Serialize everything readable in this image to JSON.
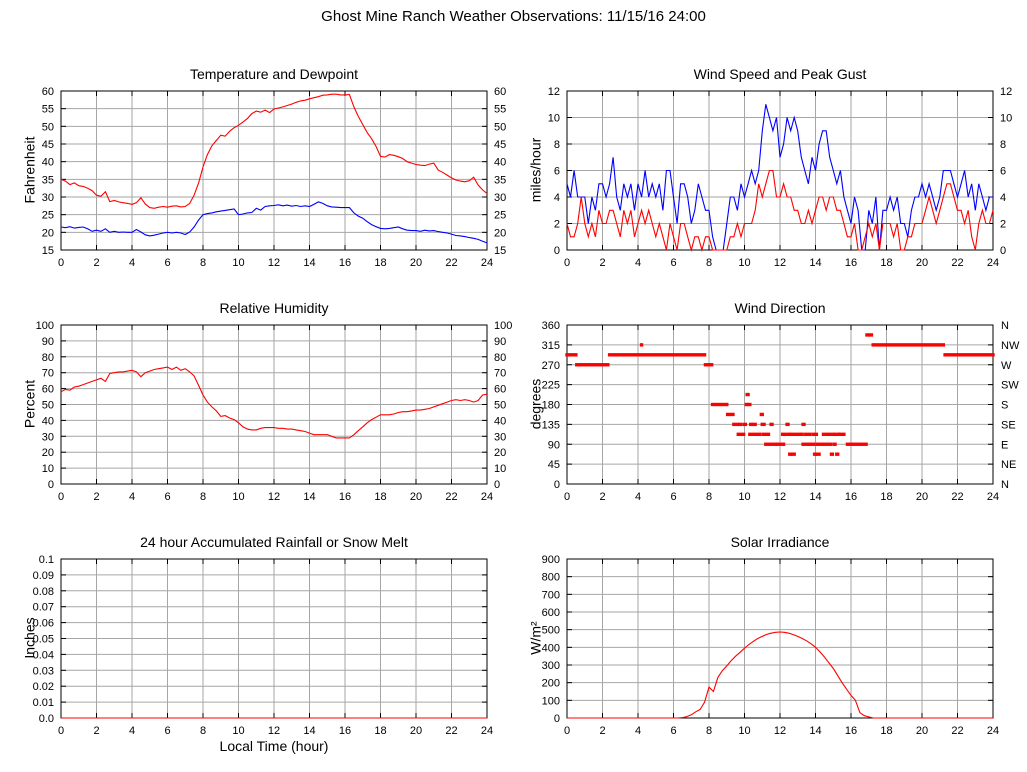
{
  "title": "Ghost Mine Ranch Weather Observations: 11/15/16 24:00",
  "colors": {
    "red": "#ff0000",
    "blue": "#0000ff",
    "grid": "#a6a6a6",
    "border": "#000000"
  },
  "chart_data": [
    {
      "type": "line",
      "title": "Temperature and Dewpoint",
      "ylabel": "Fahrenheit",
      "xlim": [
        0,
        24
      ],
      "ylim": [
        15,
        60
      ],
      "x_ticks": [
        0,
        2,
        4,
        6,
        8,
        10,
        12,
        14,
        16,
        18,
        20,
        22,
        24
      ],
      "y_ticks": [
        15,
        20,
        25,
        30,
        35,
        40,
        45,
        50,
        55,
        60
      ],
      "mirror_y_labels": true,
      "grid": true,
      "series": [
        {
          "name": "temperature",
          "color": "#ff0000",
          "x0": 0,
          "dx": 0.25,
          "values": [
            35,
            34.5,
            33.5,
            34,
            33.2,
            33,
            32.5,
            31.8,
            30.5,
            30.2,
            31.5,
            28.7,
            29,
            28.6,
            28.4,
            28.2,
            27.9,
            28.4,
            29.8,
            28,
            27,
            26.8,
            27.1,
            27.3,
            27.1,
            27.4,
            27.5,
            27.2,
            27.3,
            28.2,
            30.5,
            34,
            38.5,
            42,
            44.5,
            46,
            47.5,
            47.2,
            48.6,
            49.6,
            50.3,
            51.2,
            52.2,
            53.6,
            54.3,
            54,
            54.6,
            53.9,
            54.9,
            55.2,
            55.5,
            55.9,
            56.3,
            56.8,
            57.2,
            57.4,
            57.8,
            58.1,
            58.4,
            58.8,
            58.9,
            59.1,
            59.1,
            58.9,
            58.9,
            59,
            55.5,
            52.8,
            50.5,
            48.2,
            46.5,
            44.3,
            41.5,
            41.3,
            42,
            41.8,
            41.4,
            40.9,
            40,
            39.6,
            39.2,
            39,
            38.9,
            39.3,
            39.6,
            37.6,
            37,
            36.2,
            35.4,
            34.8,
            34.5,
            34.3,
            34.6,
            35.6,
            33.4,
            32,
            31
          ]
        },
        {
          "name": "dewpoint",
          "color": "#0000ff",
          "x0": 0,
          "dx": 0.25,
          "values": [
            21.5,
            21.3,
            21.6,
            21.2,
            21.4,
            21.5,
            21,
            20.3,
            20.6,
            20.3,
            21,
            20,
            20.3,
            20,
            20.1,
            20,
            20,
            20.8,
            20.1,
            19.3,
            19,
            19.2,
            19.5,
            19.8,
            20,
            19.8,
            20,
            19.8,
            19.4,
            20.1,
            21.5,
            23.5,
            25,
            25.3,
            25.5,
            25.8,
            26,
            26.2,
            26.4,
            26.6,
            25,
            25.2,
            25.5,
            25.6,
            26.8,
            26.3,
            27.3,
            27.5,
            27.6,
            27.8,
            27.5,
            27.7,
            27.4,
            27.6,
            27.3,
            27.5,
            27.3,
            27.9,
            28.6,
            28.2,
            27.5,
            27.2,
            27.1,
            27,
            27,
            27,
            25.5,
            24.6,
            24,
            23,
            22.2,
            21.6,
            21.1,
            21,
            21.1,
            21.3,
            21.5,
            21,
            20.6,
            20.5,
            20.5,
            20.3,
            20.6,
            20.4,
            20.5,
            20.2,
            20,
            19.8,
            19.5,
            19.1,
            19,
            18.8,
            18.5,
            18.3,
            18,
            17.5,
            17
          ]
        }
      ]
    },
    {
      "type": "line",
      "title": "Wind Speed and Peak Gust",
      "ylabel": "miles/hour",
      "xlim": [
        0,
        24
      ],
      "ylim": [
        0,
        12
      ],
      "x_ticks": [
        0,
        2,
        4,
        6,
        8,
        10,
        12,
        14,
        16,
        18,
        20,
        22,
        24
      ],
      "y_ticks": [
        0,
        2,
        4,
        6,
        8,
        10,
        12
      ],
      "mirror_y_labels": true,
      "grid": true,
      "series": [
        {
          "name": "peak-gust",
          "color": "#0000ff",
          "x0": 0,
          "dx": 0.2,
          "values": [
            5,
            4,
            6,
            4,
            4,
            4,
            2,
            4,
            3,
            5,
            5,
            4,
            5,
            7,
            4,
            3,
            5,
            4,
            5,
            3,
            5,
            4,
            6,
            4,
            5,
            4,
            5,
            3,
            6,
            6,
            4,
            2,
            5,
            5,
            4,
            2,
            3,
            5,
            4,
            3,
            3,
            1,
            0,
            0,
            0,
            2,
            4,
            4,
            3,
            5,
            4,
            5,
            6,
            5,
            6,
            9,
            11,
            10,
            9,
            10,
            7,
            8,
            10,
            9,
            10,
            9,
            7,
            6,
            5,
            7,
            6,
            8,
            9,
            9,
            7,
            6,
            5,
            6,
            4,
            3,
            2,
            4,
            3,
            0,
            0,
            3,
            2,
            4,
            0,
            3,
            3,
            4,
            3,
            4,
            2,
            2,
            1,
            3,
            4,
            4,
            5,
            4,
            5,
            4,
            3,
            4,
            6,
            6,
            6,
            5,
            4,
            5,
            6,
            4,
            5,
            3,
            5,
            4,
            3,
            4,
            4
          ]
        },
        {
          "name": "wind-speed",
          "color": "#ff0000",
          "x0": 0,
          "dx": 0.2,
          "values": [
            2,
            1,
            1,
            2,
            4,
            2,
            1,
            2,
            1,
            3,
            2,
            2,
            3,
            3,
            2,
            1,
            3,
            2,
            3,
            1,
            2,
            3,
            2,
            3,
            2,
            1,
            2,
            1,
            0,
            2,
            1,
            0,
            2,
            2,
            1,
            0,
            1,
            1,
            0,
            1,
            1,
            0,
            0,
            0,
            0,
            0,
            1,
            1,
            2,
            1,
            2,
            2,
            2,
            3,
            5,
            4,
            5,
            6,
            6,
            4,
            4,
            5,
            4,
            4,
            3,
            3,
            2,
            2,
            3,
            2,
            3,
            4,
            4,
            3,
            4,
            4,
            3,
            3,
            2,
            1,
            1,
            2,
            0,
            0,
            1,
            2,
            1,
            2,
            0,
            2,
            2,
            2,
            1,
            2,
            0,
            0,
            1,
            1,
            2,
            2,
            2,
            3,
            4,
            3,
            2,
            3,
            4,
            5,
            5,
            4,
            3,
            3,
            2,
            3,
            1,
            0,
            2,
            3,
            2,
            2,
            3
          ]
        }
      ]
    },
    {
      "type": "line",
      "title": "Relative Humidity",
      "ylabel": "Percent",
      "xlim": [
        0,
        24
      ],
      "ylim": [
        0,
        100
      ],
      "x_ticks": [
        0,
        2,
        4,
        6,
        8,
        10,
        12,
        14,
        16,
        18,
        20,
        22,
        24
      ],
      "y_ticks": [
        0,
        10,
        20,
        30,
        40,
        50,
        60,
        70,
        80,
        90,
        100
      ],
      "mirror_y_labels": true,
      "grid": true,
      "series": [
        {
          "name": "relative-humidity",
          "color": "#ff0000",
          "x0": 0,
          "dx": 0.25,
          "values": [
            58,
            59.5,
            59,
            61,
            61.5,
            62.5,
            63.5,
            64.5,
            65.5,
            66.5,
            64.5,
            69.5,
            70,
            70.5,
            70.5,
            71,
            71.5,
            70.5,
            67.5,
            70,
            71,
            72,
            72.5,
            73,
            73.5,
            72,
            73.5,
            71.5,
            72.5,
            70.5,
            68,
            62,
            56,
            51.5,
            48.5,
            46,
            42.5,
            43,
            41.5,
            40.5,
            38.5,
            36,
            34.5,
            34,
            34,
            35,
            35.5,
            35.5,
            35.5,
            35,
            35,
            34.5,
            34.5,
            34,
            33.5,
            33,
            32,
            31,
            31,
            31,
            31,
            30,
            29,
            29,
            29,
            29,
            31,
            33.5,
            36,
            38.5,
            40.5,
            42,
            43.5,
            43.5,
            43.5,
            44,
            45,
            45.5,
            45.5,
            46,
            46.5,
            46.5,
            47,
            47.5,
            48.5,
            49.5,
            50.5,
            51.5,
            52.5,
            53,
            52.5,
            53,
            52.5,
            51.5,
            52.5,
            56,
            56.5
          ]
        }
      ]
    },
    {
      "type": "scatter",
      "title": "Wind Direction",
      "ylabel": "degrees",
      "xlim": [
        0,
        24
      ],
      "ylim": [
        0,
        360
      ],
      "x_ticks": [
        0,
        2,
        4,
        6,
        8,
        10,
        12,
        14,
        16,
        18,
        20,
        22,
        24
      ],
      "y_ticks": [
        0,
        45,
        90,
        135,
        180,
        225,
        270,
        315,
        360
      ],
      "right_axis_labels": [
        "N",
        "NE",
        "E",
        "SE",
        "S",
        "SW",
        "W",
        "NW",
        "N"
      ],
      "grid": true,
      "series": [
        {
          "name": "wind-direction",
          "color": "#ff0000",
          "runs": [
            [
              0.0,
              0.5,
              292.5
            ],
            [
              0.55,
              2.3,
              270
            ],
            [
              2.4,
              7.75,
              292.5
            ],
            [
              4.2,
              4.2,
              315
            ],
            [
              7.8,
              8.15,
              270
            ],
            [
              8.2,
              9.0,
              180
            ],
            [
              9.05,
              9.35,
              157.5
            ],
            [
              9.4,
              9.6,
              135
            ],
            [
              9.65,
              9.95,
              112.5
            ],
            [
              9.75,
              9.8,
              135
            ],
            [
              10.0,
              10.05,
              135
            ],
            [
              10.1,
              10.1,
              180
            ],
            [
              10.15,
              10.2,
              202.5
            ],
            [
              10.25,
              10.3,
              180
            ],
            [
              10.3,
              10.85,
              112.5
            ],
            [
              10.35,
              10.4,
              135
            ],
            [
              10.55,
              10.6,
              135
            ],
            [
              10.95,
              11.0,
              157.5
            ],
            [
              11.0,
              11.1,
              135
            ],
            [
              11.05,
              11.35,
              112.5
            ],
            [
              11.2,
              11.75,
              90
            ],
            [
              11.5,
              11.55,
              135
            ],
            [
              11.85,
              12.2,
              90
            ],
            [
              12.15,
              12.5,
              112.5
            ],
            [
              12.4,
              12.45,
              135
            ],
            [
              12.55,
              12.6,
              67.5
            ],
            [
              12.7,
              12.8,
              67.5
            ],
            [
              12.6,
              13.1,
              112.5
            ],
            [
              13.2,
              13.25,
              112.5
            ],
            [
              13.3,
              13.35,
              135
            ],
            [
              13.3,
              13.9,
              90
            ],
            [
              13.45,
              13.7,
              112.5
            ],
            [
              13.9,
              14.05,
              112.5
            ],
            [
              13.95,
              14.0,
              67.5
            ],
            [
              14.1,
              14.2,
              67.5
            ],
            [
              14.1,
              14.4,
              90
            ],
            [
              14.45,
              14.6,
              112.5
            ],
            [
              14.5,
              14.85,
              90
            ],
            [
              14.75,
              15.0,
              112.5
            ],
            [
              14.9,
              14.95,
              67.5
            ],
            [
              15.05,
              15.1,
              90
            ],
            [
              15.2,
              15.25,
              67.5
            ],
            [
              15.1,
              15.3,
              112.5
            ],
            [
              15.35,
              15.6,
              112.5
            ],
            [
              15.8,
              16.85,
              90
            ],
            [
              16.9,
              17.15,
              337.5
            ],
            [
              17.25,
              21.2,
              315
            ],
            [
              21.3,
              24.0,
              292.5
            ]
          ]
        }
      ]
    },
    {
      "type": "line",
      "title": "24 hour Accumulated Rainfall or Snow Melt",
      "ylabel": "Inches",
      "xlabel": "Local Time (hour)",
      "xlim": [
        0,
        24
      ],
      "ylim": [
        0,
        0.1
      ],
      "x_ticks": [
        0,
        2,
        4,
        6,
        8,
        10,
        12,
        14,
        16,
        18,
        20,
        22,
        24
      ],
      "y_ticks": [
        0,
        0.01,
        0.02,
        0.03,
        0.04,
        0.05,
        0.06,
        0.07,
        0.08,
        0.09,
        0.1
      ],
      "y_tick_labels": [
        "0.0",
        "0.01",
        "0.02",
        "0.03",
        "0.04",
        "0.05",
        "0.06",
        "0.07",
        "0.08",
        "0.09",
        "0.1"
      ],
      "grid": true,
      "series": [
        {
          "name": "accumulated-rainfall",
          "color": "#ff0000",
          "x0": 0,
          "dx": 24,
          "values": [
            0,
            0
          ]
        }
      ]
    },
    {
      "type": "line",
      "title": "Solar Irradiance",
      "ylabel": "W/m²",
      "xlim": [
        0,
        24
      ],
      "ylim": [
        0,
        900
      ],
      "x_ticks": [
        0,
        2,
        4,
        6,
        8,
        10,
        12,
        14,
        16,
        18,
        20,
        22,
        24
      ],
      "y_ticks": [
        0,
        100,
        200,
        300,
        400,
        500,
        600,
        700,
        800,
        900
      ],
      "grid": true,
      "series": [
        {
          "name": "solar-irradiance",
          "color": "#ff0000",
          "x0": 0,
          "dx": 0.25,
          "values": [
            0,
            0,
            0,
            0,
            0,
            0,
            0,
            0,
            0,
            0,
            0,
            0,
            0,
            0,
            0,
            0,
            0,
            0,
            0,
            0,
            0,
            0,
            0,
            0,
            0,
            0,
            2,
            8,
            18,
            35,
            48,
            90,
            175,
            150,
            230,
            268,
            295,
            325,
            350,
            372,
            395,
            416,
            434,
            450,
            462,
            473,
            480,
            485,
            487,
            485,
            480,
            472,
            462,
            450,
            437,
            420,
            400,
            375,
            345,
            313,
            280,
            240,
            200,
            163,
            128,
            100,
            30,
            13,
            6,
            0,
            0,
            0,
            0,
            0,
            0,
            0,
            0,
            0,
            0,
            0,
            0,
            0,
            0,
            0,
            0,
            0,
            0,
            0,
            0,
            0,
            0,
            0,
            0,
            0,
            0,
            0,
            0
          ]
        }
      ]
    }
  ]
}
